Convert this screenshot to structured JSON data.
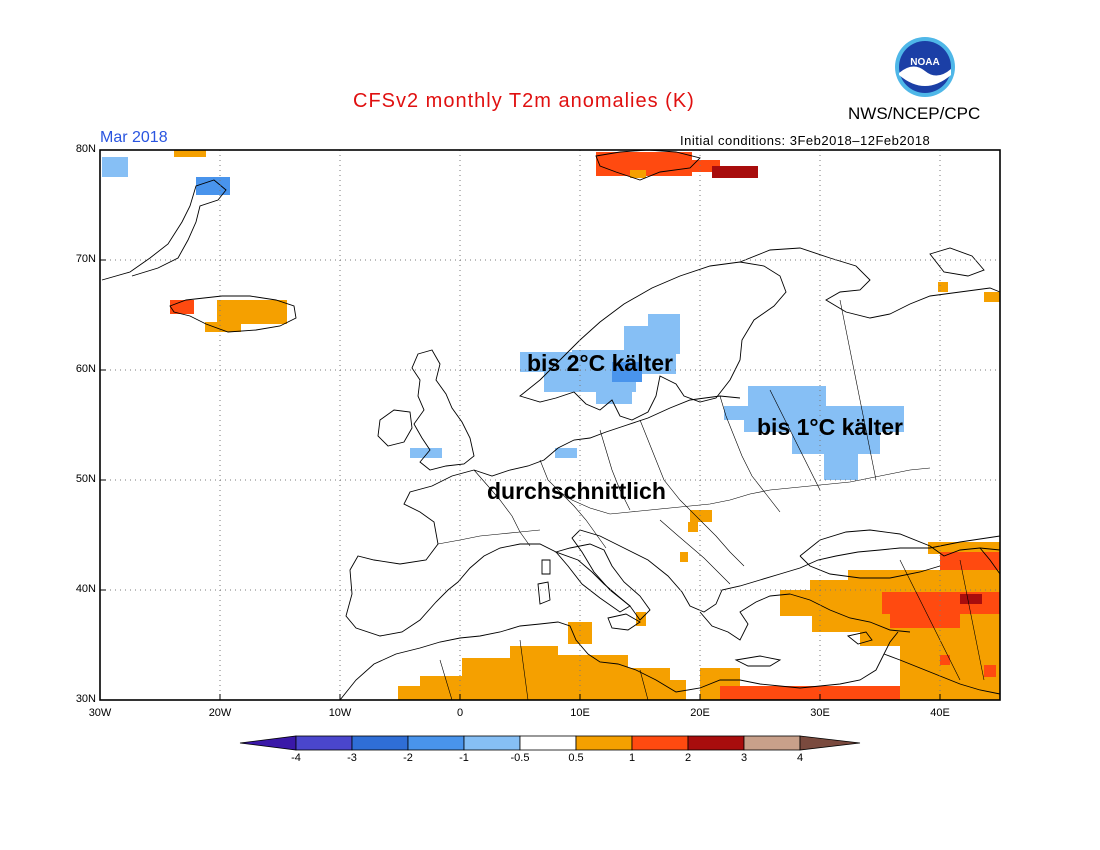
{
  "header": {
    "title": "CFSv2 monthly T2m anomalies (K)",
    "agency": "NWS/NCEP/CPC",
    "logo_text": "NOAA",
    "month": "Mar 2018",
    "initial_conditions": "Initial conditions: 3Feb2018–12Feb2018"
  },
  "map": {
    "lat_labels": [
      "80N",
      "70N",
      "60N",
      "50N",
      "40N",
      "30N"
    ],
    "lon_labels": [
      "30W",
      "20W",
      "10W",
      "0",
      "10E",
      "20E",
      "30E",
      "40E"
    ],
    "annotations": [
      "bis 2°C kälter",
      "bis 1°C kälter",
      "durchschnittlich"
    ]
  },
  "colorbar": {
    "labels": [
      "-4",
      "-3",
      "-2",
      "-1",
      "-0.5",
      "0.5",
      "1",
      "2",
      "3",
      "4"
    ],
    "colors": [
      "#3a18a8",
      "#4a46cc",
      "#2f6ed6",
      "#4994ec",
      "#86bff5",
      "#ffffff",
      "#f5a000",
      "#ff4a10",
      "#a80d0d",
      "#c8a08a",
      "#7a4a3e"
    ]
  }
}
